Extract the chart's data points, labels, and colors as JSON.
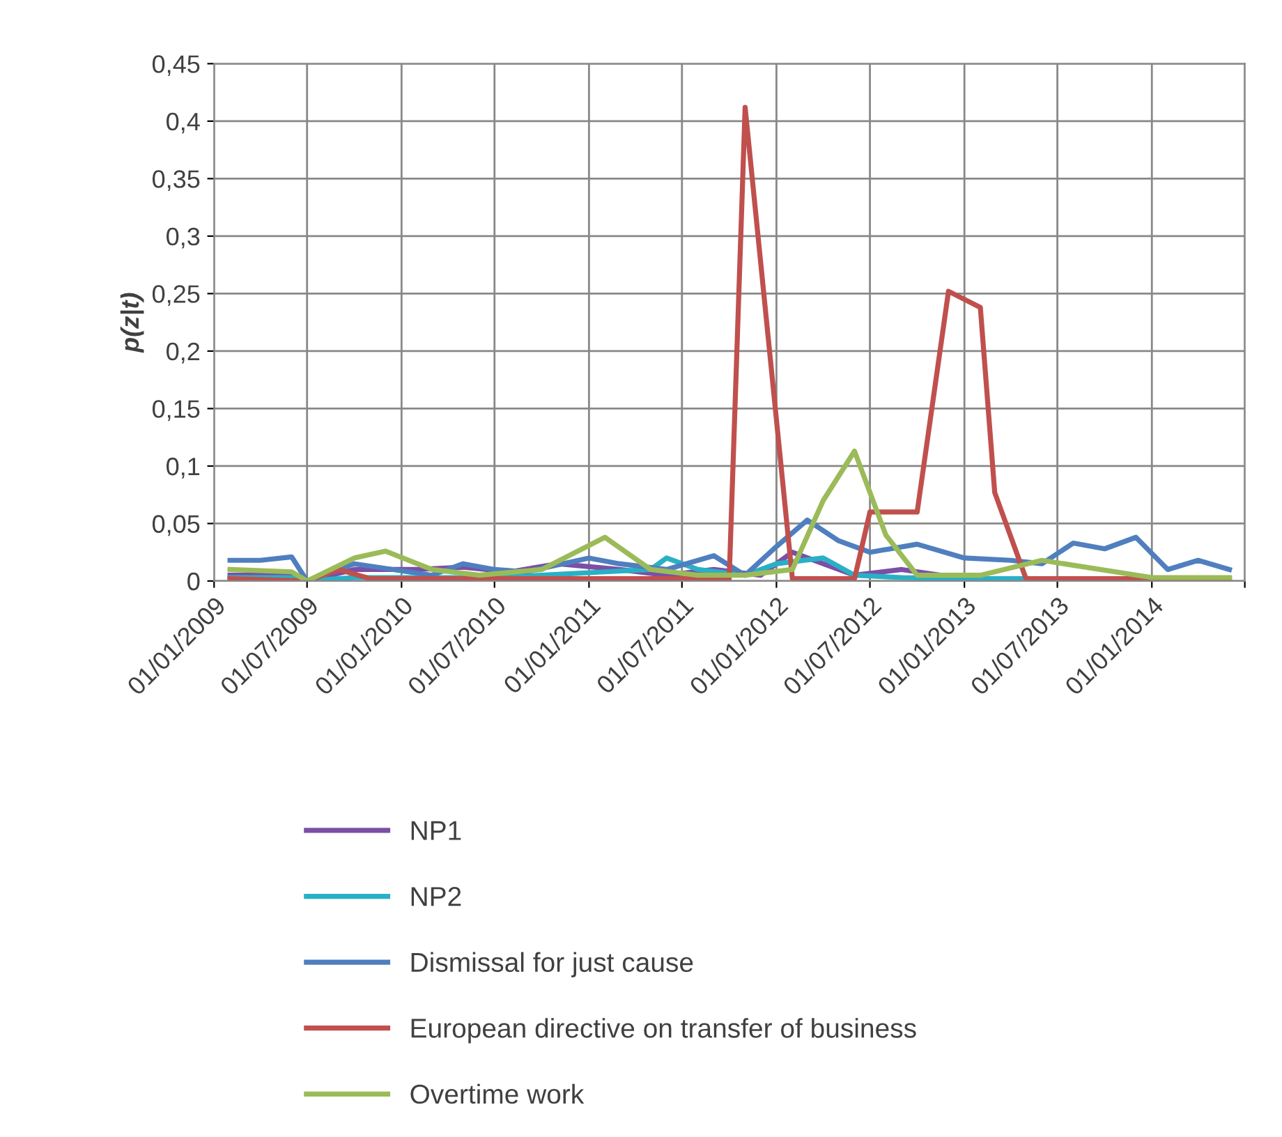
{
  "chart_data": {
    "type": "line",
    "ylabel": "p(z|t)",
    "ylim": [
      0,
      0.45
    ],
    "yticks": [
      0,
      {
        "value": 0.05,
        "label": "0,05"
      },
      {
        "value": 0.1,
        "label": "0,1"
      },
      {
        "value": 0.15,
        "label": "0,15"
      },
      {
        "value": 0.2,
        "label": "0,2"
      },
      {
        "value": 0.25,
        "label": "0,25"
      },
      {
        "value": 0.3,
        "label": "0,3"
      },
      {
        "value": 0.35,
        "label": "0,35"
      },
      {
        "value": 0.4,
        "label": "0,4"
      },
      {
        "value": 0.45,
        "label": "0,45"
      }
    ],
    "xlim": [
      "2009-01-01",
      "2014-07-01"
    ],
    "xticks": [
      {
        "value": "2009-01-01",
        "label": "01/01/2009"
      },
      {
        "value": "2009-07-01",
        "label": "01/07/2009"
      },
      {
        "value": "2010-01-01",
        "label": "01/01/2010"
      },
      {
        "value": "2010-07-01",
        "label": "01/07/2010"
      },
      {
        "value": "2011-01-01",
        "label": "01/01/2011"
      },
      {
        "value": "2011-07-01",
        "label": "01/07/2011"
      },
      {
        "value": "2012-01-01",
        "label": "01/01/2012"
      },
      {
        "value": "2012-07-01",
        "label": "01/07/2012"
      },
      {
        "value": "2013-01-01",
        "label": "01/01/2013"
      },
      {
        "value": "2013-07-01",
        "label": "01/07/2013"
      },
      {
        "value": "2014-01-01",
        "label": "01/01/2014"
      },
      {
        "value": "2014-07-01",
        "label": null
      }
    ],
    "grid": true,
    "legend": "bottom",
    "series": [
      {
        "name": "NP1",
        "color": "#7b4fa6",
        "x": [
          "2009-02-01",
          "2009-06-01",
          "2009-07-01",
          "2009-10-01",
          "2010-02-01",
          "2010-05-01",
          "2010-08-01",
          "2010-11-01",
          "2011-03-01",
          "2011-06-01",
          "2011-09-01",
          "2011-12-01",
          "2012-02-01",
          "2012-04-01",
          "2012-06-01",
          "2012-09-01",
          "2013-01-01",
          "2013-06-01"
        ],
        "values": [
          0.005,
          0.005,
          0.0,
          0.01,
          0.01,
          0.012,
          0.008,
          0.015,
          0.01,
          0.005,
          0.01,
          0.005,
          0.025,
          0.015,
          0.005,
          0.01,
          0.002,
          0.002
        ]
      },
      {
        "name": "NP2",
        "color": "#2ab0c5",
        "x": [
          "2009-02-01",
          "2009-06-01",
          "2009-07-01",
          "2009-10-01",
          "2010-02-01",
          "2010-06-01",
          "2010-10-01",
          "2011-02-01",
          "2011-05-01",
          "2011-06-01",
          "2011-08-01",
          "2011-11-01",
          "2012-01-01",
          "2012-04-01",
          "2012-06-01",
          "2012-09-01",
          "2013-01-01",
          "2013-06-01",
          "2014-01-01",
          "2014-06-01"
        ],
        "values": [
          0.003,
          0.003,
          0.0,
          0.003,
          0.003,
          0.003,
          0.005,
          0.008,
          0.01,
          0.02,
          0.01,
          0.005,
          0.015,
          0.02,
          0.005,
          0.003,
          0.002,
          0.002,
          0.002,
          0.002
        ]
      },
      {
        "name": "Dismissal for just cause",
        "color": "#4f7fbf",
        "x": [
          "2009-02-01",
          "2009-04-01",
          "2009-06-01",
          "2009-07-01",
          "2009-10-01",
          "2010-03-01",
          "2010-05-01",
          "2010-07-01",
          "2010-09-01",
          "2011-01-01",
          "2011-03-01",
          "2011-06-01",
          "2011-09-01",
          "2011-11-01",
          "2012-01-01",
          "2012-03-01",
          "2012-05-01",
          "2012-07-01",
          "2012-10-01",
          "2013-01-01",
          "2013-04-01",
          "2013-06-01",
          "2013-08-01",
          "2013-10-01",
          "2013-12-01",
          "2014-02-01",
          "2014-04-01",
          "2014-06-01"
        ],
        "values": [
          0.018,
          0.018,
          0.021,
          0.0,
          0.015,
          0.005,
          0.015,
          0.01,
          0.008,
          0.02,
          0.015,
          0.01,
          0.022,
          0.005,
          0.03,
          0.053,
          0.035,
          0.025,
          0.032,
          0.02,
          0.018,
          0.015,
          0.033,
          0.028,
          0.038,
          0.01,
          0.018,
          0.01
        ]
      },
      {
        "name": "European directive on transfer of business",
        "color": "#c0504d",
        "x": [
          "2009-02-01",
          "2009-07-01",
          "2009-09-01",
          "2009-11-01",
          "2010-06-01",
          "2011-06-01",
          "2011-10-01",
          "2011-11-01",
          "2012-02-01",
          "2012-06-01",
          "2012-07-01",
          "2012-10-01",
          "2012-12-01",
          "2013-02-01",
          "2013-03-01",
          "2013-05-01",
          "2014-06-01"
        ],
        "values": [
          0.002,
          0.0,
          0.01,
          0.002,
          0.002,
          0.002,
          0.002,
          0.412,
          0.002,
          0.002,
          0.06,
          0.06,
          0.252,
          0.238,
          0.077,
          0.002,
          0.002
        ]
      },
      {
        "name": "Overtime work",
        "color": "#9bbb59",
        "x": [
          "2009-02-01",
          "2009-06-01",
          "2009-07-01",
          "2009-10-01",
          "2009-12-01",
          "2010-03-01",
          "2010-06-01",
          "2010-10-01",
          "2011-02-01",
          "2011-05-01",
          "2011-08-01",
          "2011-11-01",
          "2012-02-01",
          "2012-04-01",
          "2012-06-01",
          "2012-08-01",
          "2012-10-01",
          "2013-02-01",
          "2013-06-01",
          "2014-01-01",
          "2014-06-01"
        ],
        "values": [
          0.01,
          0.008,
          0.0,
          0.02,
          0.026,
          0.01,
          0.005,
          0.01,
          0.038,
          0.01,
          0.005,
          0.005,
          0.01,
          0.07,
          0.113,
          0.04,
          0.005,
          0.005,
          0.018,
          0.003,
          0.003
        ]
      }
    ]
  }
}
